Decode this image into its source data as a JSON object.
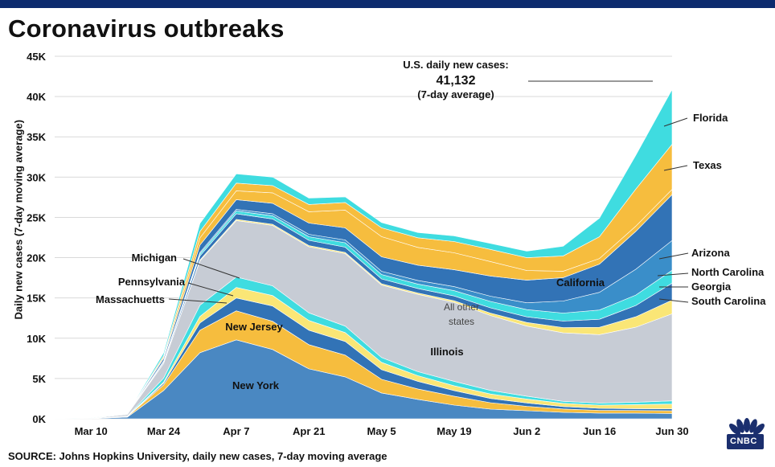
{
  "title": "Coronavirus outbreaks",
  "source": "SOURCE: Johns Hopkins University, daily new cases, 7-day moving average",
  "logo_text": "CNBC",
  "annotation": {
    "line1": "U.S. daily new cases:",
    "value": "41,132",
    "line3": "(7-day average)"
  },
  "chart_data": {
    "type": "area",
    "stacked": true,
    "ylabel": "Daily new cases (7-day moving average)",
    "ylim": [
      0,
      45000
    ],
    "yticks": [
      "0K",
      "5K",
      "10K",
      "15K",
      "20K",
      "25K",
      "30K",
      "35K",
      "40K",
      "45K"
    ],
    "x": [
      "Mar 1",
      "Mar 10",
      "Mar 17",
      "Mar 24",
      "Mar 31",
      "Apr 7",
      "Apr 14",
      "Apr 21",
      "Apr 28",
      "May 5",
      "May 12",
      "May 19",
      "May 26",
      "Jun 2",
      "Jun 9",
      "Jun 16",
      "Jun 23",
      "Jun 30"
    ],
    "xticks": [
      "Mar 10",
      "Mar 24",
      "Apr 7",
      "Apr 21",
      "May 5",
      "May 19",
      "Jun 2",
      "Jun 16",
      "Jun 30"
    ],
    "series": [
      {
        "name": "New York",
        "color": "#4a88c2",
        "values": [
          0,
          20,
          200,
          3500,
          8200,
          9800,
          8600,
          6200,
          5200,
          3200,
          2400,
          1700,
          1200,
          1000,
          800,
          700,
          700,
          650
        ]
      },
      {
        "name": "New Jersey",
        "color": "#f6bd3e",
        "values": [
          0,
          10,
          60,
          700,
          2800,
          3600,
          3500,
          3000,
          2700,
          1700,
          1300,
          1100,
          800,
          550,
          420,
          350,
          330,
          350
        ]
      },
      {
        "name": "Massachuetts",
        "color": "#3273b6",
        "values": [
          0,
          10,
          20,
          200,
          900,
          1600,
          1900,
          1800,
          1700,
          1200,
          950,
          700,
          520,
          420,
          300,
          250,
          230,
          230
        ]
      },
      {
        "name": "Pennsylvania",
        "color": "#fae676",
        "values": [
          0,
          5,
          20,
          150,
          800,
          1300,
          1300,
          1200,
          1100,
          900,
          700,
          600,
          550,
          480,
          400,
          400,
          500,
          600
        ]
      },
      {
        "name": "Michigan",
        "color": "#3fdce0",
        "values": [
          0,
          5,
          30,
          500,
          1400,
          1300,
          1200,
          950,
          800,
          600,
          500,
          550,
          450,
          350,
          250,
          250,
          300,
          400
        ]
      },
      {
        "name": "All other states",
        "color": "#c7ccd5",
        "values": [
          0,
          30,
          200,
          1800,
          5500,
          7000,
          7500,
          8200,
          9000,
          9000,
          9600,
          9800,
          9300,
          8700,
          8500,
          8500,
          9300,
          10800
        ]
      },
      {
        "name": "South Carolina",
        "color": "#fae676",
        "values": [
          0,
          0,
          5,
          40,
          120,
          150,
          150,
          150,
          150,
          160,
          170,
          200,
          300,
          450,
          650,
          900,
          1300,
          1700
        ]
      },
      {
        "name": "Georgia",
        "color": "#3273b6",
        "values": [
          0,
          0,
          10,
          150,
          500,
          700,
          650,
          650,
          650,
          600,
          550,
          600,
          650,
          700,
          800,
          1000,
          1400,
          2100
        ]
      },
      {
        "name": "North Carolina",
        "color": "#3fdce0",
        "values": [
          0,
          0,
          5,
          80,
          250,
          350,
          400,
          450,
          550,
          550,
          550,
          650,
          800,
          900,
          1000,
          1150,
          1300,
          1600
        ]
      },
      {
        "name": "Arizona",
        "color": "#3a8ec9",
        "values": [
          0,
          0,
          5,
          60,
          180,
          200,
          250,
          300,
          350,
          400,
          450,
          500,
          650,
          850,
          1500,
          2200,
          3200,
          3700
        ]
      },
      {
        "name": "California",
        "color": "#3273b6",
        "values": [
          0,
          5,
          30,
          300,
          900,
          1200,
          1300,
          1400,
          1500,
          1800,
          1900,
          2100,
          2500,
          2800,
          2900,
          3500,
          4700,
          5700
        ]
      },
      {
        "name": "Illinois",
        "color": "#f6bd3e",
        "values": [
          0,
          0,
          10,
          150,
          900,
          1100,
          1300,
          1400,
          2200,
          2500,
          2200,
          2100,
          1800,
          1200,
          800,
          700,
          650,
          650
        ]
      },
      {
        "name": "Texas",
        "color": "#f6bd3e",
        "values": [
          0,
          5,
          20,
          200,
          800,
          950,
          900,
          900,
          950,
          1100,
          1200,
          1400,
          1500,
          1600,
          1900,
          2700,
          4600,
          5600
        ]
      },
      {
        "name": "Florida",
        "color": "#3fdce0",
        "values": [
          0,
          5,
          40,
          350,
          1000,
          1150,
          1050,
          800,
          700,
          650,
          650,
          700,
          750,
          800,
          1200,
          2300,
          4200,
          6800
        ]
      }
    ]
  }
}
